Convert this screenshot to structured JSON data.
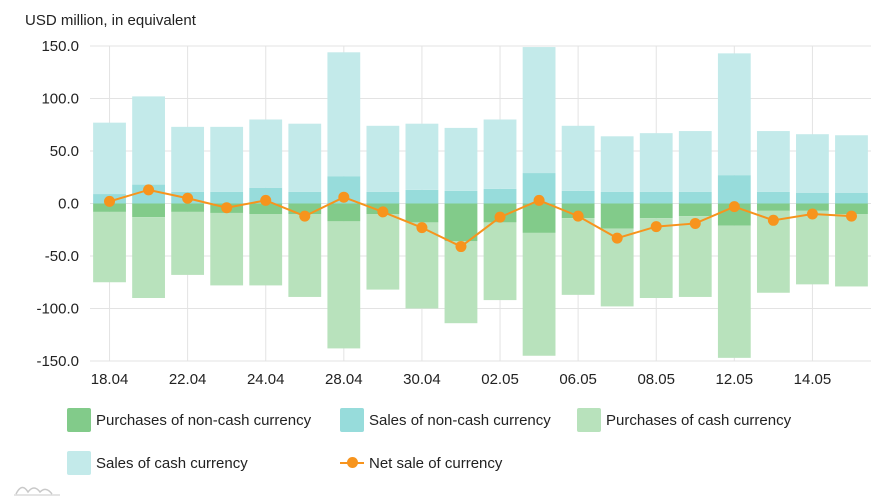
{
  "chart_data": {
    "type": "bar",
    "stacked": true,
    "ylabel": "USD million, in equivalent",
    "ylim": [
      -150,
      150
    ],
    "yticks": [
      "150.0",
      "100.0",
      "50.0",
      "0.0",
      "-50.0",
      "-100.0",
      "-150.0"
    ],
    "ytick_values": [
      150,
      100,
      50,
      0,
      -50,
      -100,
      -150
    ],
    "xtick_labels": [
      "18.04",
      "22.04",
      "24.04",
      "28.04",
      "30.04",
      "02.05",
      "06.05",
      "08.05",
      "12.05",
      "14.05"
    ],
    "xtick_indices": [
      0,
      2,
      4,
      6,
      8,
      10,
      12,
      14,
      16,
      18
    ],
    "n_bars": 20,
    "grid": true,
    "legend_placement": "bottom",
    "series": [
      {
        "name": "Purchases of non-cash currency",
        "color": "#82cb8a",
        "values": [
          -8,
          -13,
          -8,
          -9,
          -10,
          -10,
          -17,
          -10,
          -18,
          -36,
          -18,
          -28,
          -14,
          -24,
          -14,
          -12,
          -21,
          -7,
          -7,
          -10
        ]
      },
      {
        "name": "Sales of non-cash currency",
        "color": "#97dcdb",
        "values": [
          9,
          18,
          11,
          11,
          15,
          11,
          26,
          11,
          13,
          12,
          14,
          29,
          12,
          11,
          11,
          11,
          27,
          11,
          10,
          10
        ]
      },
      {
        "name": "Purchases of cash currency",
        "color": "#b8e2bc",
        "values": [
          -67,
          -77,
          -60,
          -69,
          -68,
          -79,
          -121,
          -72,
          -82,
          -78,
          -74,
          -117,
          -73,
          -74,
          -76,
          -77,
          -126,
          -78,
          -70,
          -69
        ]
      },
      {
        "name": "Sales of cash currency",
        "color": "#c3eaea",
        "values": [
          68,
          84,
          62,
          62,
          65,
          65,
          118,
          63,
          63,
          60,
          66,
          120,
          62,
          53,
          56,
          58,
          116,
          58,
          56,
          55
        ]
      },
      {
        "name": "Net sale of currency",
        "type": "line",
        "color": "#f7941d",
        "values": [
          2,
          13,
          5,
          -4,
          3,
          -12,
          6,
          -8,
          -23,
          -41,
          -13,
          3,
          -12,
          -33,
          -22,
          -19,
          -3,
          -16,
          -10,
          -12
        ]
      }
    ]
  }
}
